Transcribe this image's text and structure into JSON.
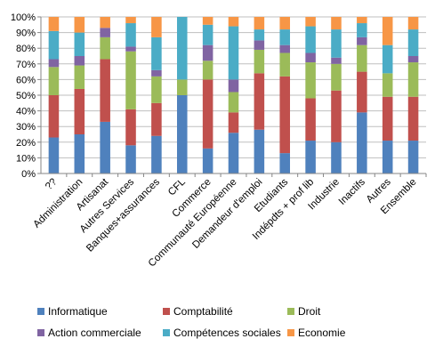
{
  "chart_data": {
    "type": "bar",
    "stacked": true,
    "categories": [
      "??",
      "Administration",
      "Artisanat",
      "Autres Services",
      "Banques+assurances",
      "CFL",
      "Commerce",
      "Communauté Européenne",
      "Demandeur d'emploi",
      "Etudiants",
      "Indépdts + prof lib",
      "Industrie",
      "Inactifs",
      "Autres",
      "Ensemble"
    ],
    "ylim": [
      0,
      100
    ],
    "yticks": [
      "0%",
      "10%",
      "20%",
      "30%",
      "40%",
      "50%",
      "60%",
      "70%",
      "80%",
      "90%",
      "100%"
    ],
    "grid": true,
    "legend_position": "bottom",
    "series": [
      {
        "name": "Informatique",
        "color": "#4F81BD",
        "values": [
          23,
          25,
          33,
          18,
          24,
          50,
          16,
          26,
          28,
          13,
          21,
          20,
          39,
          21,
          21
        ]
      },
      {
        "name": "Comptabilité",
        "color": "#C0504D",
        "values": [
          27,
          29,
          40,
          23,
          21,
          0,
          44,
          13,
          36,
          49,
          27,
          33,
          26,
          28,
          28
        ]
      },
      {
        "name": "Droit",
        "color": "#9BBB59",
        "values": [
          18,
          15,
          14,
          37,
          17,
          10,
          12,
          13,
          15,
          15,
          23,
          17,
          17,
          15,
          22
        ]
      },
      {
        "name": "Action commerciale",
        "color": "#8064A2",
        "values": [
          5,
          6,
          6,
          3,
          4,
          0,
          10,
          8,
          6,
          5,
          6,
          4,
          5,
          0,
          4
        ]
      },
      {
        "name": "Compétences sociales",
        "color": "#4BACC6",
        "values": [
          18,
          15,
          0,
          15,
          21,
          40,
          13,
          34,
          7,
          10,
          17,
          18,
          9,
          18,
          17
        ]
      },
      {
        "name": "Economie",
        "color": "#F79646",
        "values": [
          9,
          10,
          7,
          4,
          13,
          0,
          5,
          6,
          8,
          8,
          6,
          8,
          4,
          18,
          8
        ]
      }
    ]
  }
}
